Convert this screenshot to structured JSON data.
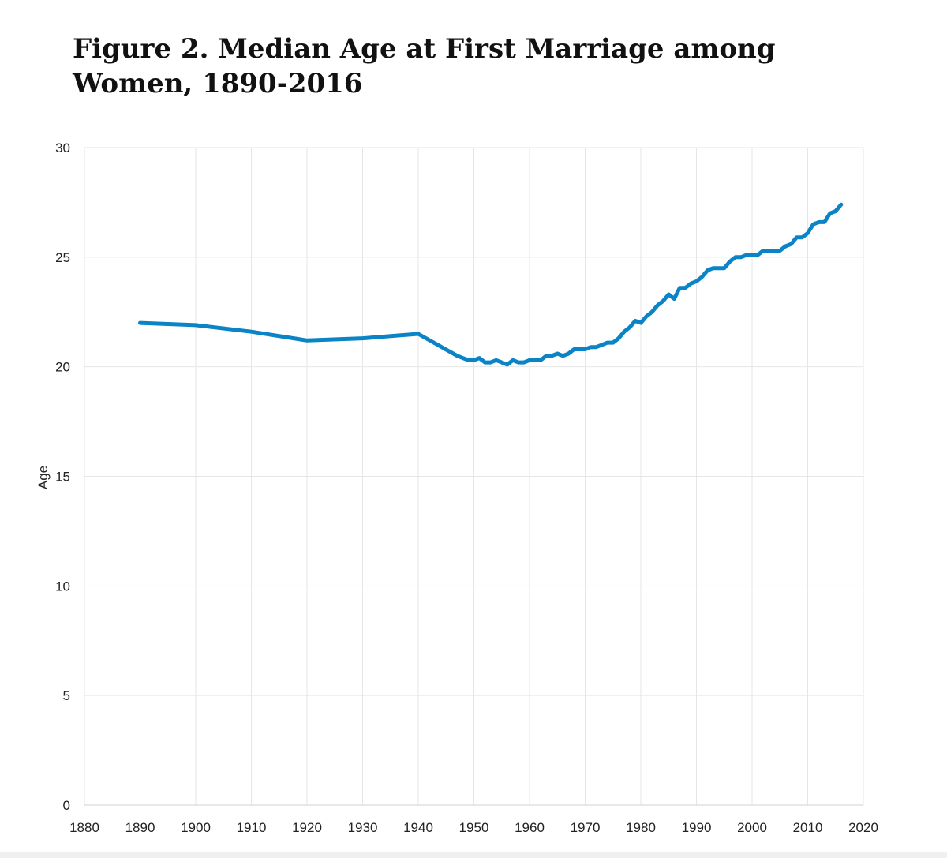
{
  "chart_data": {
    "type": "line",
    "title": "Figure 2. Median Age at First Marriage among Women, 1890-2016",
    "xlabel": "",
    "ylabel": "Age",
    "xlim": [
      1880,
      2020
    ],
    "ylim": [
      0,
      30
    ],
    "x_ticks": [
      1880,
      1890,
      1900,
      1910,
      1920,
      1930,
      1940,
      1950,
      1960,
      1970,
      1980,
      1990,
      2000,
      2010,
      2020
    ],
    "y_ticks": [
      0,
      5,
      10,
      15,
      20,
      25,
      30
    ],
    "grid": true,
    "legend": "none",
    "series": [
      {
        "color": "#0a84c6",
        "x": [
          1890,
          1900,
          1910,
          1920,
          1930,
          1940,
          1947,
          1949,
          1950,
          1951,
          1952,
          1953,
          1954,
          1955,
          1956,
          1957,
          1958,
          1959,
          1960,
          1961,
          1962,
          1963,
          1964,
          1965,
          1966,
          1967,
          1968,
          1969,
          1970,
          1971,
          1972,
          1973,
          1974,
          1975,
          1976,
          1977,
          1978,
          1979,
          1980,
          1981,
          1982,
          1983,
          1984,
          1985,
          1986,
          1987,
          1988,
          1989,
          1990,
          1991,
          1992,
          1993,
          1994,
          1995,
          1996,
          1997,
          1998,
          1999,
          2000,
          2001,
          2002,
          2003,
          2004,
          2005,
          2006,
          2007,
          2008,
          2009,
          2010,
          2011,
          2012,
          2013,
          2014,
          2015,
          2016
        ],
        "y": [
          22.0,
          21.9,
          21.6,
          21.2,
          21.3,
          21.5,
          20.5,
          20.3,
          20.3,
          20.4,
          20.2,
          20.2,
          20.3,
          20.2,
          20.1,
          20.3,
          20.2,
          20.2,
          20.3,
          20.3,
          20.3,
          20.5,
          20.5,
          20.6,
          20.5,
          20.6,
          20.8,
          20.8,
          20.8,
          20.9,
          20.9,
          21.0,
          21.1,
          21.1,
          21.3,
          21.6,
          21.8,
          22.1,
          22.0,
          22.3,
          22.5,
          22.8,
          23.0,
          23.3,
          23.1,
          23.6,
          23.6,
          23.8,
          23.9,
          24.1,
          24.4,
          24.5,
          24.5,
          24.5,
          24.8,
          25.0,
          25.0,
          25.1,
          25.1,
          25.1,
          25.3,
          25.3,
          25.3,
          25.3,
          25.5,
          25.6,
          25.9,
          25.9,
          26.1,
          26.5,
          26.6,
          26.6,
          27.0,
          27.1,
          27.4
        ]
      }
    ]
  }
}
